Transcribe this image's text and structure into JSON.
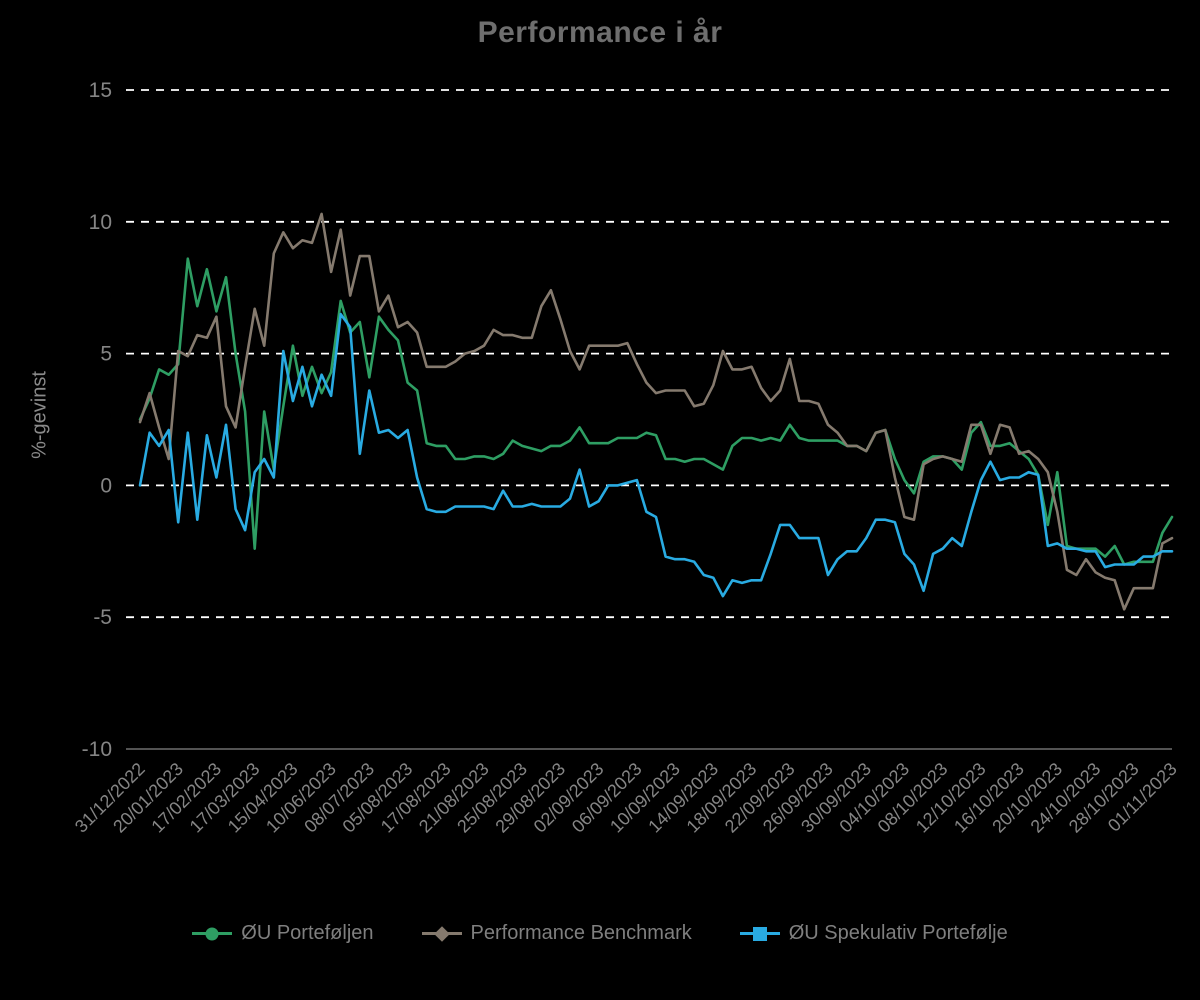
{
  "chart_data": {
    "type": "line",
    "title": "Performance i år",
    "ylabel": "%-gevinst",
    "xlabel": "",
    "ylim": [
      -10,
      15
    ],
    "yticks": [
      15,
      10,
      5,
      0,
      -5,
      -10
    ],
    "grid": "horizontal-dashed",
    "legend_position": "bottom",
    "colors": {
      "title": "#6e6e6e",
      "axis_text": "#858585",
      "grid": "#ffffff",
      "baseline": "#6f6f6f"
    },
    "x_tick_labels": [
      "31/12/2022",
      "20/01/2023",
      "17/02/2023",
      "17/03/2023",
      "15/04/2023",
      "10/06/2023",
      "08/07/2023",
      "05/08/2023",
      "17/08/2023",
      "21/08/2023",
      "25/08/2023",
      "29/08/2023",
      "02/09/2023",
      "06/09/2023",
      "10/09/2023",
      "14/09/2023",
      "18/09/2023",
      "22/09/2023",
      "26/09/2023",
      "30/09/2023",
      "04/10/2023",
      "08/10/2023",
      "12/10/2023",
      "16/10/2023",
      "20/10/2023",
      "24/10/2023",
      "28/10/2023",
      "01/11/2023"
    ],
    "points_per_tick": 4,
    "series": [
      {
        "name": "ØU Porteføljen",
        "color": "#2e9e63",
        "marker": "circle",
        "values": [
          2.5,
          3.3,
          4.4,
          4.2,
          4.6,
          8.6,
          6.8,
          8.2,
          6.6,
          7.9,
          5.0,
          2.8,
          -2.4,
          2.8,
          0.6,
          3.0,
          5.3,
          3.4,
          4.5,
          3.5,
          4.3,
          7.0,
          5.8,
          6.2,
          4.1,
          6.4,
          5.9,
          5.5,
          3.9,
          3.6,
          1.6,
          1.5,
          1.5,
          1.0,
          1.0,
          1.1,
          1.1,
          1.0,
          1.2,
          1.7,
          1.5,
          1.4,
          1.3,
          1.5,
          1.5,
          1.7,
          2.2,
          1.6,
          1.6,
          1.6,
          1.8,
          1.8,
          1.8,
          2.0,
          1.9,
          1.0,
          1.0,
          0.9,
          1.0,
          1.0,
          0.8,
          0.6,
          1.5,
          1.8,
          1.8,
          1.7,
          1.8,
          1.7,
          2.3,
          1.8,
          1.7,
          1.7,
          1.7,
          1.7,
          1.5,
          1.5,
          1.3,
          2.0,
          2.1,
          1.0,
          0.2,
          -0.3,
          0.9,
          1.1,
          1.1,
          1.0,
          0.6,
          2.0,
          2.4,
          1.5,
          1.5,
          1.6,
          1.3,
          1.0,
          0.4,
          -1.5,
          0.5,
          -2.3,
          -2.4,
          -2.4,
          -2.4,
          -2.7,
          -2.3,
          -3.0,
          -2.9,
          -2.9,
          -2.9,
          -1.8,
          -1.2
        ]
      },
      {
        "name": "Performance Benchmark",
        "color": "#857a6e",
        "marker": "diamond",
        "values": [
          2.4,
          3.5,
          2.2,
          1.0,
          5.1,
          4.9,
          5.7,
          5.6,
          6.4,
          3.0,
          2.2,
          4.5,
          6.7,
          5.3,
          8.8,
          9.6,
          9.0,
          9.3,
          9.2,
          10.3,
          8.1,
          9.7,
          7.2,
          8.7,
          8.7,
          6.6,
          7.2,
          6.0,
          6.2,
          5.8,
          4.5,
          4.5,
          4.5,
          4.7,
          5.0,
          5.1,
          5.3,
          5.9,
          5.7,
          5.7,
          5.6,
          5.6,
          6.8,
          7.4,
          6.3,
          5.1,
          4.4,
          5.3,
          5.3,
          5.3,
          5.3,
          5.4,
          4.6,
          3.9,
          3.5,
          3.6,
          3.6,
          3.6,
          3.0,
          3.1,
          3.8,
          5.1,
          4.4,
          4.4,
          4.5,
          3.7,
          3.2,
          3.6,
          4.8,
          3.2,
          3.2,
          3.1,
          2.3,
          2.0,
          1.5,
          1.5,
          1.3,
          2.0,
          2.1,
          0.3,
          -1.2,
          -1.3,
          0.8,
          1.0,
          1.1,
          1.0,
          0.9,
          2.3,
          2.3,
          1.2,
          2.3,
          2.2,
          1.2,
          1.3,
          1.0,
          0.5,
          -1.0,
          -3.2,
          -3.4,
          -2.8,
          -3.3,
          -3.5,
          -3.6,
          -4.7,
          -3.9,
          -3.9,
          -3.9,
          -2.2,
          -2.0
        ]
      },
      {
        "name": "ØU Spekulativ Portefølje",
        "color": "#29abe2",
        "marker": "square",
        "values": [
          0.0,
          2.0,
          1.5,
          2.1,
          -1.4,
          2.0,
          -1.3,
          1.9,
          0.3,
          2.3,
          -0.9,
          -1.7,
          0.5,
          1.0,
          0.3,
          5.1,
          3.2,
          4.5,
          3.0,
          4.2,
          3.4,
          6.5,
          6.0,
          1.2,
          3.6,
          2.0,
          2.1,
          1.8,
          2.1,
          0.3,
          -0.9,
          -1.0,
          -1.0,
          -0.8,
          -0.8,
          -0.8,
          -0.8,
          -0.9,
          -0.2,
          -0.8,
          -0.8,
          -0.7,
          -0.8,
          -0.8,
          -0.8,
          -0.5,
          0.6,
          -0.8,
          -0.6,
          0.0,
          0.0,
          0.1,
          0.2,
          -1.0,
          -1.2,
          -2.7,
          -2.8,
          -2.8,
          -2.9,
          -3.4,
          -3.5,
          -4.2,
          -3.6,
          -3.7,
          -3.6,
          -3.6,
          -2.6,
          -1.5,
          -1.5,
          -2.0,
          -2.0,
          -2.0,
          -3.4,
          -2.8,
          -2.5,
          -2.5,
          -2.0,
          -1.3,
          -1.3,
          -1.4,
          -2.6,
          -3.0,
          -4.0,
          -2.6,
          -2.4,
          -2.0,
          -2.3,
          -1.0,
          0.2,
          0.9,
          0.2,
          0.3,
          0.3,
          0.5,
          0.4,
          -2.3,
          -2.2,
          -2.4,
          -2.4,
          -2.5,
          -2.5,
          -3.1,
          -3.0,
          -3.0,
          -3.0,
          -2.7,
          -2.7,
          -2.5,
          -2.5
        ]
      }
    ]
  }
}
